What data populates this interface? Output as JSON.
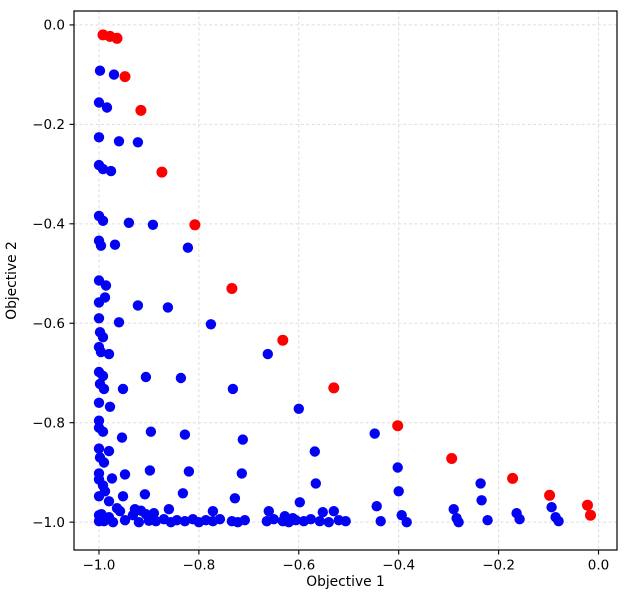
{
  "chart_data": {
    "type": "scatter",
    "title": "",
    "xlabel": "Objective 1",
    "ylabel": "Objective 2",
    "xlim": [
      -1.05,
      0.037
    ],
    "ylim": [
      -1.056,
      0.028
    ],
    "x_ticks": [
      -1.0,
      -0.8,
      -0.6,
      -0.4,
      -0.2,
      0.0
    ],
    "x_tick_labels": [
      "−1.0",
      "−0.8",
      "−0.6",
      "−0.4",
      "−0.2",
      "0.0"
    ],
    "y_ticks": [
      0.0,
      -0.2,
      -0.4,
      -0.6,
      -0.8,
      -1.0
    ],
    "y_tick_labels": [
      "0.0",
      "−0.2",
      "−0.4",
      "−0.6",
      "−0.8",
      "−1.0"
    ],
    "grid": true,
    "legend": "none",
    "colors": {
      "blue_series": "#0202f5",
      "red_series": "#fe0000",
      "grid_line": "#dddddd",
      "spine": "#000000",
      "background": "#ffffff"
    },
    "marker": {
      "shape": "circle",
      "radius_px_blue": 5.2,
      "radius_px_red": 5.5
    },
    "series": [
      {
        "name": "blue",
        "color": "#0202f5",
        "points": [
          [
            -0.998,
            -0.092
          ],
          [
            -0.97,
            -0.1
          ],
          [
            -1.0,
            -0.156
          ],
          [
            -0.984,
            -0.166
          ],
          [
            -1.0,
            -0.226
          ],
          [
            -0.96,
            -0.234
          ],
          [
            -0.922,
            -0.236
          ],
          [
            -1.0,
            -0.282
          ],
          [
            -0.992,
            -0.29
          ],
          [
            -0.976,
            -0.294
          ],
          [
            -1.0,
            -0.384
          ],
          [
            -0.992,
            -0.394
          ],
          [
            -0.94,
            -0.398
          ],
          [
            -0.892,
            -0.402
          ],
          [
            -1.0,
            -0.434
          ],
          [
            -0.996,
            -0.444
          ],
          [
            -0.968,
            -0.442
          ],
          [
            -0.822,
            -0.448
          ],
          [
            -1.0,
            -0.514
          ],
          [
            -0.986,
            -0.524
          ],
          [
            -0.988,
            -0.548
          ],
          [
            -1.0,
            -0.558
          ],
          [
            -0.922,
            -0.564
          ],
          [
            -0.862,
            -0.568
          ],
          [
            -1.0,
            -0.59
          ],
          [
            -0.96,
            -0.598
          ],
          [
            -0.776,
            -0.602
          ],
          [
            -0.998,
            -0.618
          ],
          [
            -0.992,
            -0.628
          ],
          [
            -1.0,
            -0.648
          ],
          [
            -0.996,
            -0.658
          ],
          [
            -0.98,
            -0.662
          ],
          [
            -0.662,
            -0.662
          ],
          [
            -1.0,
            -0.698
          ],
          [
            -0.992,
            -0.706
          ],
          [
            -0.906,
            -0.708
          ],
          [
            -0.836,
            -0.71
          ],
          [
            -0.998,
            -0.722
          ],
          [
            -0.99,
            -0.732
          ],
          [
            -0.952,
            -0.732
          ],
          [
            -0.732,
            -0.732
          ],
          [
            -1.0,
            -0.76
          ],
          [
            -0.978,
            -0.768
          ],
          [
            -0.6,
            -0.772
          ],
          [
            -1.0,
            -0.796
          ],
          [
            -1.0,
            -0.81
          ],
          [
            -0.992,
            -0.818
          ],
          [
            -0.954,
            -0.83
          ],
          [
            -0.896,
            -0.818
          ],
          [
            -0.828,
            -0.824
          ],
          [
            -0.712,
            -0.834
          ],
          [
            -0.568,
            -0.858
          ],
          [
            -0.448,
            -0.822
          ],
          [
            -1.0,
            -0.852
          ],
          [
            -0.98,
            -0.857
          ],
          [
            -0.998,
            -0.87
          ],
          [
            -0.99,
            -0.88
          ],
          [
            -1.0,
            -0.902
          ],
          [
            -0.974,
            -0.912
          ],
          [
            -0.948,
            -0.904
          ],
          [
            -0.898,
            -0.896
          ],
          [
            -0.82,
            -0.898
          ],
          [
            -0.714,
            -0.902
          ],
          [
            -0.566,
            -0.922
          ],
          [
            -0.402,
            -0.89
          ],
          [
            -0.236,
            -0.922
          ],
          [
            -1.0,
            -0.914
          ],
          [
            -0.992,
            -0.926
          ],
          [
            -0.988,
            -0.938
          ],
          [
            -1.0,
            -0.948
          ],
          [
            -0.952,
            -0.948
          ],
          [
            -0.908,
            -0.944
          ],
          [
            -0.832,
            -0.942
          ],
          [
            -0.728,
            -0.952
          ],
          [
            -0.598,
            -0.96
          ],
          [
            -0.4,
            -0.938
          ],
          [
            -0.234,
            -0.956
          ],
          [
            -0.98,
            -0.958
          ],
          [
            -0.964,
            -0.972
          ],
          [
            -0.928,
            -0.974
          ],
          [
            -0.916,
            -0.977
          ],
          [
            -0.89,
            -0.982
          ],
          [
            -0.86,
            -0.974
          ],
          [
            -0.772,
            -0.978
          ],
          [
            -0.66,
            -0.978
          ],
          [
            -0.628,
            -0.988
          ],
          [
            -0.612,
            -0.992
          ],
          [
            -0.552,
            -0.98
          ],
          [
            -0.53,
            -0.978
          ],
          [
            -0.444,
            -0.968
          ],
          [
            -0.394,
            -0.986
          ],
          [
            -0.29,
            -0.974
          ],
          [
            -0.164,
            -0.982
          ],
          [
            -0.094,
            -0.97
          ],
          [
            -0.086,
            -0.99
          ],
          [
            -1.0,
            -0.986
          ],
          [
            -1.0,
            -0.998
          ],
          [
            -0.995,
            -0.984
          ],
          [
            -0.99,
            -0.998
          ],
          [
            -0.98,
            -0.99
          ],
          [
            -0.972,
            -1.0
          ],
          [
            -0.958,
            -0.978
          ],
          [
            -0.948,
            -0.996
          ],
          [
            -0.932,
            -0.986
          ],
          [
            -0.92,
            -1.0
          ],
          [
            -0.906,
            -0.984
          ],
          [
            -0.9,
            -0.997
          ],
          [
            -0.886,
            -0.998
          ],
          [
            -0.87,
            -0.994
          ],
          [
            -0.856,
            -1.0
          ],
          [
            -0.844,
            -0.996
          ],
          [
            -0.828,
            -0.998
          ],
          [
            -0.812,
            -0.994
          ],
          [
            -0.8,
            -1.0
          ],
          [
            -0.786,
            -0.996
          ],
          [
            -0.772,
            -0.998
          ],
          [
            -0.758,
            -0.994
          ],
          [
            -0.734,
            -0.998
          ],
          [
            -0.722,
            -1.0
          ],
          [
            -0.708,
            -0.996
          ],
          [
            -0.664,
            -0.998
          ],
          [
            -0.65,
            -0.994
          ],
          [
            -0.632,
            -0.998
          ],
          [
            -0.62,
            -1.0
          ],
          [
            -0.606,
            -0.996
          ],
          [
            -0.59,
            -0.998
          ],
          [
            -0.576,
            -0.994
          ],
          [
            -0.558,
            -0.998
          ],
          [
            -0.54,
            -1.0
          ],
          [
            -0.52,
            -0.996
          ],
          [
            -0.506,
            -0.998
          ],
          [
            -0.436,
            -0.998
          ],
          [
            -0.384,
            -1.0
          ],
          [
            -0.284,
            -0.992
          ],
          [
            -0.28,
            -1.0
          ],
          [
            -0.222,
            -0.996
          ],
          [
            -0.158,
            -0.994
          ],
          [
            -0.08,
            -0.998
          ]
        ]
      },
      {
        "name": "red",
        "color": "#fe0000",
        "points": [
          [
            -0.992,
            -0.02
          ],
          [
            -0.978,
            -0.023
          ],
          [
            -0.964,
            -0.027
          ],
          [
            -0.948,
            -0.104
          ],
          [
            -0.916,
            -0.172
          ],
          [
            -0.874,
            -0.296
          ],
          [
            -0.808,
            -0.402
          ],
          [
            -0.734,
            -0.53
          ],
          [
            -0.632,
            -0.634
          ],
          [
            -0.53,
            -0.73
          ],
          [
            -0.402,
            -0.806
          ],
          [
            -0.294,
            -0.872
          ],
          [
            -0.172,
            -0.912
          ],
          [
            -0.098,
            -0.946
          ],
          [
            -0.022,
            -0.966
          ],
          [
            -0.016,
            -0.986
          ]
        ]
      }
    ]
  }
}
